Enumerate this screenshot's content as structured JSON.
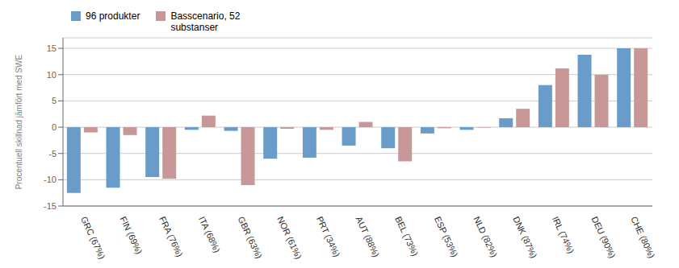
{
  "chart_data": {
    "type": "bar",
    "categories": [
      "GRC (67%)",
      "FIN (69%)",
      "FRA (76%)",
      "ITA (68%)",
      "GBR (63%)",
      "NOR (61%)",
      "PRT (34%)",
      "AUT (88%)",
      "BEL (73%)",
      "ESP (53%)",
      "NLD (82%)",
      "DNK (87%)",
      "IRL (74%)",
      "DEU (90%)",
      "CHE (80%)"
    ],
    "series": [
      {
        "name": "96 produkter",
        "color": "#6a9cc9",
        "values": [
          -12.5,
          -11.5,
          -9.5,
          -0.5,
          -0.7,
          -6.0,
          -5.8,
          -3.5,
          -4.0,
          -1.2,
          -0.5,
          1.7,
          8.0,
          13.8,
          15.0
        ]
      },
      {
        "name": "Basscenario, 52\nsubstanser",
        "color": "#c89898",
        "values": [
          -1.0,
          -1.5,
          -9.8,
          2.2,
          -11.0,
          -0.3,
          -0.5,
          1.0,
          -6.5,
          -0.2,
          -0.1,
          3.5,
          11.2,
          10.0,
          15.0
        ]
      }
    ],
    "ylabel": "Procentuell skillnad jämfört med SWE",
    "ylim": [
      -15,
      17
    ],
    "yticks": [
      -15,
      -10,
      -5,
      0,
      5,
      10,
      15
    ],
    "grid": true,
    "legend": "upper left"
  }
}
